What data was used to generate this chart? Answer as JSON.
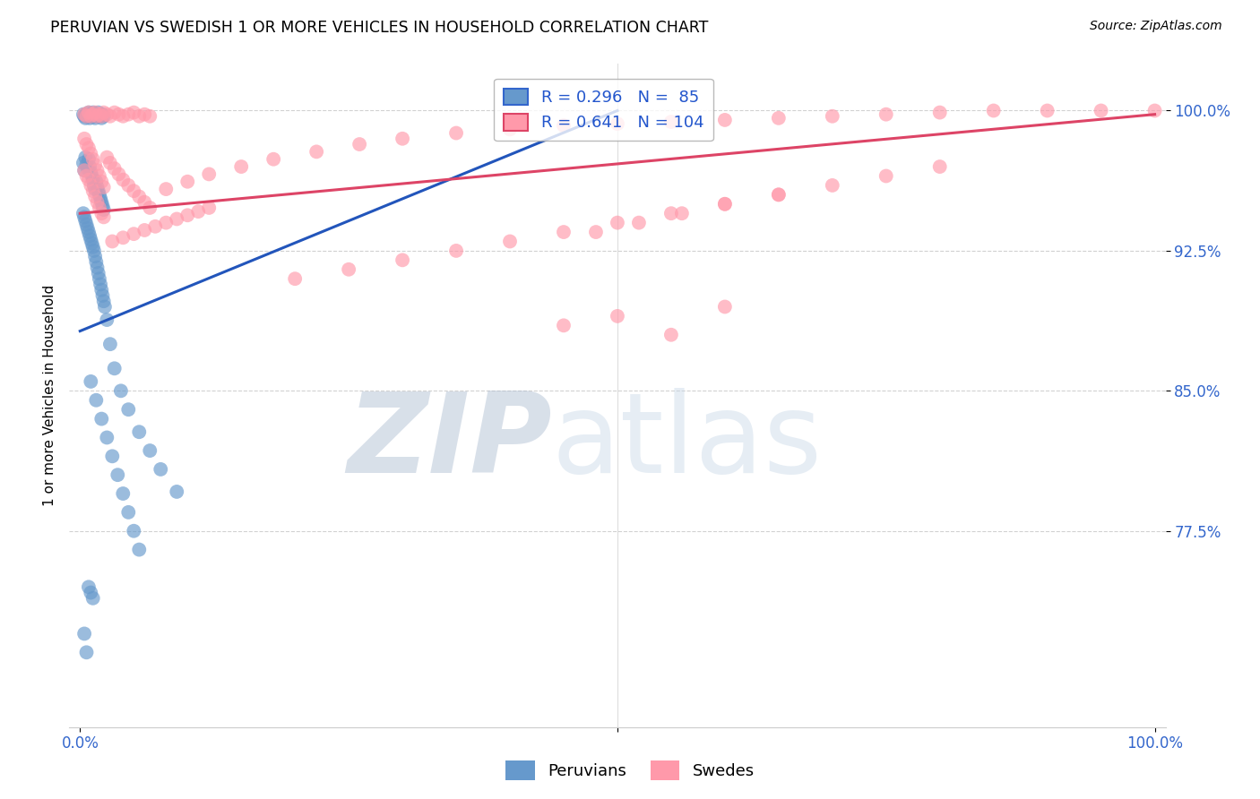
{
  "title": "PERUVIAN VS SWEDISH 1 OR MORE VEHICLES IN HOUSEHOLD CORRELATION CHART",
  "source": "Source: ZipAtlas.com",
  "ylabel": "1 or more Vehicles in Household",
  "ytick_labels": [
    "100.0%",
    "92.5%",
    "85.0%",
    "77.5%"
  ],
  "ytick_values": [
    1.0,
    0.925,
    0.85,
    0.775
  ],
  "xlim": [
    -0.01,
    1.01
  ],
  "ylim": [
    0.67,
    1.025
  ],
  "peruvian_color": "#6699CC",
  "swedish_color": "#FF99AA",
  "trend_blue_color": "#2255BB",
  "trend_pink_color": "#DD4466",
  "watermark_zip": "ZIP",
  "watermark_atlas": "atlas",
  "watermark_color_zip": "#AABBCC",
  "watermark_color_atlas": "#AABBCC",
  "peruvians_label": "Peruvians",
  "swedes_label": "Swedes",
  "legend_R_blue": "R = 0.296",
  "legend_N_blue": "N =  85",
  "legend_R_pink": "R = 0.641",
  "legend_N_pink": "N = 104",
  "peru_x": [
    0.003,
    0.004,
    0.005,
    0.006,
    0.007,
    0.008,
    0.009,
    0.01,
    0.011,
    0.012,
    0.013,
    0.014,
    0.015,
    0.016,
    0.017,
    0.018,
    0.019,
    0.02,
    0.021,
    0.022,
    0.003,
    0.004,
    0.005,
    0.006,
    0.007,
    0.008,
    0.009,
    0.01,
    0.011,
    0.012,
    0.013,
    0.014,
    0.015,
    0.016,
    0.017,
    0.018,
    0.019,
    0.02,
    0.021,
    0.022,
    0.003,
    0.004,
    0.005,
    0.006,
    0.007,
    0.008,
    0.009,
    0.01,
    0.011,
    0.012,
    0.013,
    0.014,
    0.015,
    0.016,
    0.017,
    0.018,
    0.019,
    0.02,
    0.021,
    0.022,
    0.023,
    0.025,
    0.028,
    0.032,
    0.038,
    0.045,
    0.055,
    0.065,
    0.075,
    0.09,
    0.01,
    0.015,
    0.02,
    0.025,
    0.03,
    0.035,
    0.04,
    0.045,
    0.05,
    0.055,
    0.004,
    0.006,
    0.008,
    0.01,
    0.012
  ],
  "peru_y": [
    0.998,
    0.997,
    0.996,
    0.998,
    0.997,
    0.999,
    0.996,
    0.997,
    0.998,
    0.999,
    0.997,
    0.996,
    0.998,
    0.997,
    0.999,
    0.998,
    0.997,
    0.996,
    0.998,
    0.997,
    0.972,
    0.968,
    0.975,
    0.971,
    0.969,
    0.974,
    0.97,
    0.967,
    0.965,
    0.963,
    0.96,
    0.958,
    0.962,
    0.959,
    0.957,
    0.955,
    0.953,
    0.951,
    0.949,
    0.947,
    0.945,
    0.943,
    0.941,
    0.939,
    0.937,
    0.935,
    0.933,
    0.931,
    0.929,
    0.927,
    0.925,
    0.922,
    0.919,
    0.916,
    0.913,
    0.91,
    0.907,
    0.904,
    0.901,
    0.898,
    0.895,
    0.888,
    0.875,
    0.862,
    0.85,
    0.84,
    0.828,
    0.818,
    0.808,
    0.796,
    0.855,
    0.845,
    0.835,
    0.825,
    0.815,
    0.805,
    0.795,
    0.785,
    0.775,
    0.765,
    0.72,
    0.71,
    0.745,
    0.742,
    0.739
  ],
  "swe_x": [
    0.004,
    0.006,
    0.008,
    0.01,
    0.012,
    0.014,
    0.016,
    0.018,
    0.02,
    0.022,
    0.025,
    0.028,
    0.032,
    0.036,
    0.04,
    0.045,
    0.05,
    0.055,
    0.06,
    0.065,
    0.004,
    0.006,
    0.008,
    0.01,
    0.012,
    0.014,
    0.016,
    0.018,
    0.02,
    0.022,
    0.025,
    0.028,
    0.032,
    0.036,
    0.04,
    0.045,
    0.05,
    0.055,
    0.06,
    0.065,
    0.004,
    0.006,
    0.008,
    0.01,
    0.012,
    0.014,
    0.016,
    0.018,
    0.02,
    0.022,
    0.08,
    0.1,
    0.12,
    0.15,
    0.18,
    0.22,
    0.26,
    0.3,
    0.35,
    0.4,
    0.45,
    0.5,
    0.55,
    0.6,
    0.65,
    0.7,
    0.75,
    0.8,
    0.85,
    0.9,
    0.95,
    1.0,
    0.48,
    0.52,
    0.56,
    0.6,
    0.65,
    0.7,
    0.75,
    0.8,
    0.03,
    0.04,
    0.05,
    0.06,
    0.07,
    0.08,
    0.09,
    0.1,
    0.11,
    0.12,
    0.2,
    0.25,
    0.3,
    0.35,
    0.4,
    0.45,
    0.5,
    0.55,
    0.6,
    0.65,
    0.55,
    0.45,
    0.5,
    0.6
  ],
  "swe_y": [
    0.998,
    0.997,
    0.999,
    0.997,
    0.998,
    0.999,
    0.997,
    0.998,
    0.997,
    0.999,
    0.998,
    0.997,
    0.999,
    0.998,
    0.997,
    0.998,
    0.999,
    0.997,
    0.998,
    0.997,
    0.968,
    0.965,
    0.963,
    0.96,
    0.957,
    0.954,
    0.951,
    0.948,
    0.945,
    0.943,
    0.975,
    0.972,
    0.969,
    0.966,
    0.963,
    0.96,
    0.957,
    0.954,
    0.951,
    0.948,
    0.985,
    0.982,
    0.98,
    0.977,
    0.974,
    0.971,
    0.968,
    0.965,
    0.962,
    0.959,
    0.958,
    0.962,
    0.966,
    0.97,
    0.974,
    0.978,
    0.982,
    0.985,
    0.988,
    0.99,
    0.992,
    0.993,
    0.994,
    0.995,
    0.996,
    0.997,
    0.998,
    0.999,
    1.0,
    1.0,
    1.0,
    1.0,
    0.935,
    0.94,
    0.945,
    0.95,
    0.955,
    0.96,
    0.965,
    0.97,
    0.93,
    0.932,
    0.934,
    0.936,
    0.938,
    0.94,
    0.942,
    0.944,
    0.946,
    0.948,
    0.91,
    0.915,
    0.92,
    0.925,
    0.93,
    0.935,
    0.94,
    0.945,
    0.95,
    0.955,
    0.88,
    0.885,
    0.89,
    0.895
  ],
  "blue_trend_x": [
    0.0,
    0.5
  ],
  "blue_trend_y": [
    0.882,
    1.0
  ],
  "pink_trend_x": [
    0.0,
    1.0
  ],
  "pink_trend_y": [
    0.945,
    0.998
  ]
}
